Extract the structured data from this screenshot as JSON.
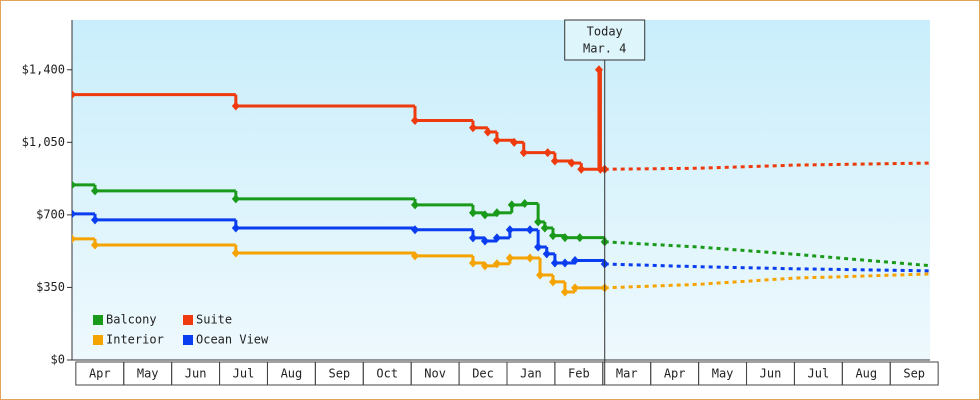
{
  "chart_data": {
    "type": "step-line",
    "xlim": [
      -0.08,
      17.83
    ],
    "xticks": [
      {
        "value": 0.5,
        "label": "Apr"
      },
      {
        "value": 1.5,
        "label": "May"
      },
      {
        "value": 2.5,
        "label": "Jun"
      },
      {
        "value": 3.5,
        "label": "Jul"
      },
      {
        "value": 4.5,
        "label": "Aug"
      },
      {
        "value": 5.5,
        "label": "Sep"
      },
      {
        "value": 6.5,
        "label": "Oct"
      },
      {
        "value": 7.5,
        "label": "Nov"
      },
      {
        "value": 8.5,
        "label": "Dec"
      },
      {
        "value": 9.5,
        "label": "Jan"
      },
      {
        "value": 10.5,
        "label": "Feb"
      },
      {
        "value": 11.5,
        "label": "Mar"
      },
      {
        "value": 12.5,
        "label": "Apr"
      },
      {
        "value": 13.5,
        "label": "May"
      },
      {
        "value": 14.5,
        "label": "Jun"
      },
      {
        "value": 15.5,
        "label": "Jul"
      },
      {
        "value": 16.5,
        "label": "Aug"
      },
      {
        "value": 17.5,
        "label": "Sep"
      }
    ],
    "ylim": [
      0,
      1640
    ],
    "yticks": [
      {
        "value": 0,
        "label": "$0"
      },
      {
        "value": 350,
        "label": "$350"
      },
      {
        "value": 700,
        "label": "$700"
      },
      {
        "value": 1050,
        "label": "$1,050"
      },
      {
        "value": 1400,
        "label": "$1,400"
      }
    ],
    "annotation_x": 11.04,
    "annotation_lines": [
      "Today",
      "Mar. 4"
    ],
    "legend_position": "lower left",
    "series": [
      {
        "name": "Balcony",
        "color": "#1a9a1a",
        "x": [
          -0.08,
          0.4,
          3.34,
          7.08,
          8.29,
          8.54,
          8.79,
          9.1,
          9.37,
          9.65,
          9.79,
          9.96,
          10.21,
          10.52,
          11.04
        ],
        "values": [
          845,
          816,
          777,
          748,
          710,
          700,
          710,
          748,
          755,
          666,
          637,
          600,
          590,
          590,
          570
        ],
        "forecast_x": [
          11.04,
          13,
          15,
          17.83
        ],
        "forecast_values": [
          570,
          545,
          510,
          455
        ]
      },
      {
        "name": "Suite",
        "color": "#ee3a0c",
        "x": [
          -0.08,
          3.34,
          7.08,
          8.29,
          8.6,
          8.79,
          9.15,
          9.35,
          9.85,
          10.0,
          10.35,
          10.55,
          10.92,
          10.95,
          11.04
        ],
        "values": [
          1280,
          1225,
          1155,
          1120,
          1100,
          1060,
          1050,
          1000,
          1000,
          960,
          950,
          920,
          1400,
          920,
          920
        ],
        "forecast_x": [
          11.04,
          13,
          15,
          17.83
        ],
        "forecast_values": [
          920,
          925,
          940,
          950
        ]
      },
      {
        "name": "Interior",
        "color": "#f5a300",
        "x": [
          -0.08,
          0.4,
          3.34,
          7.08,
          8.29,
          8.54,
          8.79,
          9.06,
          9.48,
          9.69,
          9.96,
          10.21,
          10.42,
          11.04
        ],
        "values": [
          584,
          555,
          516,
          502,
          468,
          454,
          464,
          492,
          492,
          410,
          377,
          328,
          348,
          348
        ],
        "forecast_x": [
          11.04,
          13,
          15,
          17.83
        ],
        "forecast_values": [
          348,
          365,
          395,
          415
        ]
      },
      {
        "name": "Ocean View",
        "color": "#0a3cf0",
        "x": [
          -0.08,
          0.4,
          3.34,
          7.08,
          8.29,
          8.54,
          8.79,
          9.06,
          9.48,
          9.65,
          9.83,
          10.0,
          10.21,
          10.42,
          11.04
        ],
        "values": [
          705,
          676,
          637,
          628,
          589,
          574,
          589,
          628,
          628,
          545,
          512,
          468,
          468,
          480,
          463
        ],
        "forecast_x": [
          11.04,
          13,
          15,
          17.83
        ],
        "forecast_values": [
          463,
          450,
          440,
          430
        ]
      }
    ]
  }
}
